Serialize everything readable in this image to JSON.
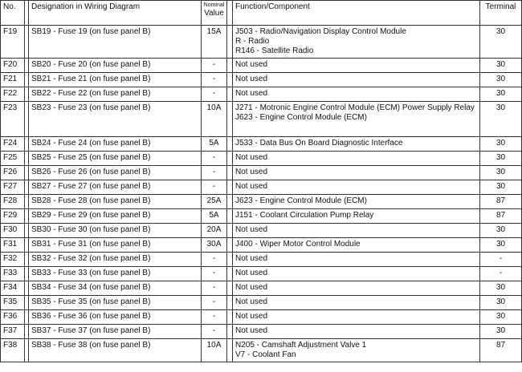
{
  "headers": {
    "no": "No.",
    "designation": "Designation in Wiring Diagram",
    "nominal_small": "Nominal",
    "nominal": "Value",
    "function": "Function/Component",
    "terminal": "Terminal"
  },
  "rows": [
    {
      "no": "F19",
      "designation": "SB19 - Fuse 19 (on fuse panel B)",
      "value": "15A",
      "function": [
        "J503 - Radio/Navigation Display Control Module",
        "R - Radio",
        "R146 - Satellite Radio"
      ],
      "terminal": "30"
    },
    {
      "no": "F20",
      "designation": "SB20 - Fuse 20 (on fuse panel B)",
      "value": "-",
      "function": [
        "Not used"
      ],
      "terminal": "30"
    },
    {
      "no": "F21",
      "designation": "SB21 - Fuse 21 (on fuse panel B)",
      "value": "-",
      "function": [
        "Not used"
      ],
      "terminal": "30"
    },
    {
      "no": "F22",
      "designation": "SB22 - Fuse 22 (on fuse panel B)",
      "value": "-",
      "function": [
        "Not used"
      ],
      "terminal": "30"
    },
    {
      "no": "F23",
      "designation": "SB23 - Fuse 23 (on fuse panel B)",
      "value": "10A",
      "function": [
        "J271 - Motronic Engine Control Module (ECM) Power Supply Relay",
        "J623 - Engine Control Module (ECM)"
      ],
      "terminal": "30"
    },
    {
      "no": "F24",
      "designation": "SB24 - Fuse 24 (on fuse panel B)",
      "value": "5A",
      "function": [
        "J533 - Data Bus On Board Diagnostic Interface"
      ],
      "terminal": "30"
    },
    {
      "no": "F25",
      "designation": "SB25 - Fuse 25 (on fuse panel B)",
      "value": "-",
      "function": [
        "Not used"
      ],
      "terminal": "30"
    },
    {
      "no": "F26",
      "designation": "SB26 - Fuse 26 (on fuse panel B)",
      "value": "-",
      "function": [
        "Not used"
      ],
      "terminal": "30"
    },
    {
      "no": "F27",
      "designation": "SB27 - Fuse 27 (on fuse panel B)",
      "value": "-",
      "function": [
        "Not used"
      ],
      "terminal": "30"
    },
    {
      "no": "F28",
      "designation": "SB28 - Fuse 28 (on fuse panel B)",
      "value": "25A",
      "function": [
        "J623 - Engine Control Module (ECM)"
      ],
      "terminal": "87"
    },
    {
      "no": "F29",
      "designation": "SB29 - Fuse 29 (on fuse panel B)",
      "value": "5A",
      "function": [
        "J151 - Coolant Circulation Pump Relay"
      ],
      "terminal": "87"
    },
    {
      "no": "F30",
      "designation": "SB30 - Fuse 30 (on fuse panel B)",
      "value": "20A",
      "function": [
        "Not used"
      ],
      "terminal": "30"
    },
    {
      "no": "F31",
      "designation": "SB31 - Fuse 31 (on fuse panel B)",
      "value": "30A",
      "function": [
        "J400 - Wiper Motor Control Module"
      ],
      "terminal": "30"
    },
    {
      "no": "F32",
      "designation": "SB32 - Fuse 32 (on fuse panel B)",
      "value": "-",
      "function": [
        "Not used"
      ],
      "terminal": "-"
    },
    {
      "no": "F33",
      "designation": "SB33 - Fuse 33 (on fuse panel B)",
      "value": "-",
      "function": [
        "Not used"
      ],
      "terminal": "-"
    },
    {
      "no": "F34",
      "designation": "SB34 - Fuse 34 (on fuse panel B)",
      "value": "-",
      "function": [
        "Not used"
      ],
      "terminal": "30"
    },
    {
      "no": "F35",
      "designation": "SB35 - Fuse 35 (on fuse panel B)",
      "value": "-",
      "function": [
        "Not used"
      ],
      "terminal": "30"
    },
    {
      "no": "F36",
      "designation": "SB36 - Fuse 36 (on fuse panel B)",
      "value": "-",
      "function": [
        "Not used"
      ],
      "terminal": "30"
    },
    {
      "no": "F37",
      "designation": "SB37 - Fuse 37 (on fuse panel B)",
      "value": "-",
      "function": [
        "Not used"
      ],
      "terminal": "30"
    },
    {
      "no": "F38",
      "designation": "SB38 - Fuse 38 (on fuse panel B)",
      "value": "10A",
      "function": [
        "N205 - Camshaft Adjustment Valve 1",
        "V7 - Coolant Fan"
      ],
      "terminal": "87"
    }
  ]
}
